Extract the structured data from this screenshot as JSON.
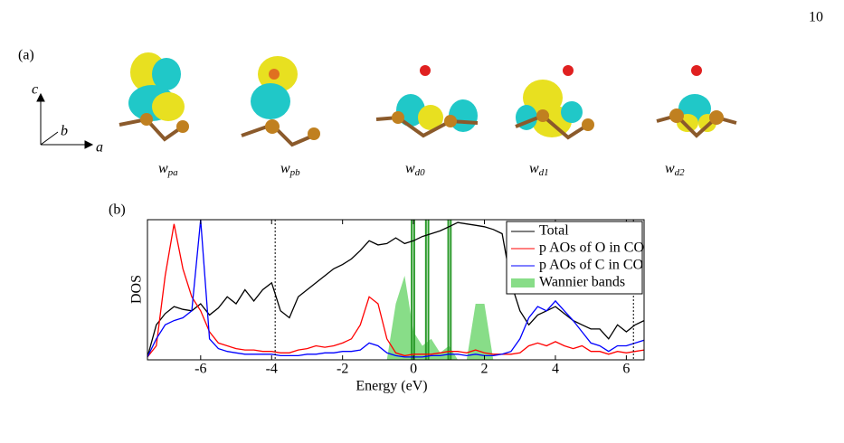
{
  "page_number": "10",
  "panel_a": {
    "label": "(a)",
    "axes": [
      "c",
      "b",
      "a"
    ],
    "orbitals": [
      {
        "symbol": "w",
        "subscript": "pa"
      },
      {
        "symbol": "w",
        "subscript": "pb"
      },
      {
        "symbol": "w",
        "subscript": "d0"
      },
      {
        "symbol": "w",
        "subscript": "d1"
      },
      {
        "symbol": "w",
        "subscript": "d2"
      }
    ]
  },
  "chart_data": {
    "type": "line",
    "panel_label": "(b)",
    "x_label": "Energy (eV)",
    "y_label": "DOS",
    "xlim": [
      -7.5,
      6.5
    ],
    "xticks": [
      -6,
      -4,
      -2,
      0,
      2,
      4,
      6
    ],
    "ylim": [
      0,
      1
    ],
    "x": [
      -7.5,
      -7.25,
      -7.0,
      -6.75,
      -6.5,
      -6.25,
      -6.0,
      -5.75,
      -5.5,
      -5.25,
      -5.0,
      -4.75,
      -4.5,
      -4.25,
      -4.0,
      -3.75,
      -3.5,
      -3.25,
      -3.0,
      -2.75,
      -2.5,
      -2.25,
      -2.0,
      -1.75,
      -1.5,
      -1.25,
      -1.0,
      -0.75,
      -0.5,
      -0.25,
      0,
      0.25,
      0.5,
      0.75,
      1.0,
      1.25,
      1.5,
      1.75,
      2.0,
      2.25,
      2.5,
      2.75,
      3.0,
      3.25,
      3.5,
      3.75,
      4.0,
      4.25,
      4.5,
      4.75,
      5.0,
      5.25,
      5.5,
      5.75,
      6.0,
      6.25,
      6.5
    ],
    "series": [
      {
        "name": "Total",
        "color": "#000000",
        "values": [
          0.02,
          0.25,
          0.33,
          0.38,
          0.36,
          0.35,
          0.4,
          0.32,
          0.37,
          0.45,
          0.4,
          0.5,
          0.42,
          0.5,
          0.55,
          0.35,
          0.3,
          0.45,
          0.5,
          0.55,
          0.6,
          0.65,
          0.68,
          0.72,
          0.78,
          0.85,
          0.82,
          0.83,
          0.87,
          0.83,
          0.85,
          0.88,
          0.9,
          0.92,
          0.95,
          0.98,
          0.97,
          0.96,
          0.95,
          0.93,
          0.9,
          0.55,
          0.35,
          0.25,
          0.32,
          0.35,
          0.38,
          0.33,
          0.28,
          0.25,
          0.22,
          0.22,
          0.15,
          0.25,
          0.2,
          0.25,
          0.28
        ]
      },
      {
        "name": "p AOs of O in CO",
        "color": "#ff0000",
        "values": [
          0.02,
          0.1,
          0.6,
          0.97,
          0.65,
          0.45,
          0.35,
          0.2,
          0.12,
          0.1,
          0.08,
          0.07,
          0.07,
          0.06,
          0.06,
          0.05,
          0.05,
          0.07,
          0.08,
          0.1,
          0.09,
          0.1,
          0.12,
          0.15,
          0.25,
          0.45,
          0.4,
          0.15,
          0.05,
          0.03,
          0.04,
          0.04,
          0.04,
          0.05,
          0.06,
          0.06,
          0.05,
          0.07,
          0.05,
          0.04,
          0.04,
          0.04,
          0.05,
          0.1,
          0.12,
          0.1,
          0.13,
          0.1,
          0.08,
          0.1,
          0.06,
          0.06,
          0.04,
          0.06,
          0.05,
          0.06,
          0.07
        ]
      },
      {
        "name": "p AOs of C in CO",
        "color": "#0000ff",
        "values": [
          0.02,
          0.15,
          0.25,
          0.28,
          0.3,
          0.35,
          1.0,
          0.15,
          0.08,
          0.06,
          0.05,
          0.04,
          0.04,
          0.04,
          0.04,
          0.03,
          0.03,
          0.03,
          0.04,
          0.04,
          0.05,
          0.05,
          0.06,
          0.06,
          0.07,
          0.12,
          0.1,
          0.05,
          0.03,
          0.02,
          0.02,
          0.02,
          0.03,
          0.03,
          0.04,
          0.04,
          0.03,
          0.04,
          0.03,
          0.03,
          0.04,
          0.06,
          0.15,
          0.3,
          0.38,
          0.35,
          0.42,
          0.35,
          0.28,
          0.2,
          0.12,
          0.1,
          0.06,
          0.1,
          0.1,
          0.12,
          0.14
        ]
      },
      {
        "name": "Wannier bands",
        "color": "#88dd88",
        "fill": true,
        "values": [
          0,
          0,
          0,
          0,
          0,
          0,
          0,
          0,
          0,
          0,
          0,
          0,
          0,
          0,
          0,
          0,
          0,
          0,
          0,
          0,
          0,
          0,
          0,
          0,
          0,
          0,
          0,
          0,
          0.4,
          0.6,
          0.2,
          0.1,
          0.15,
          0.05,
          0.1,
          0,
          0,
          0.4,
          0.4,
          0,
          0,
          0,
          0,
          0,
          0,
          0,
          0,
          0,
          0,
          0,
          0,
          0,
          0,
          0,
          0,
          0,
          0
        ]
      }
    ],
    "band_lines": [
      -0.05,
      0.02,
      0.35,
      0.42,
      0.98,
      1.05
    ],
    "band_line_color": "#2a9a2a",
    "vlines": [
      -3.9,
      6.2
    ],
    "legend": "upper right"
  }
}
